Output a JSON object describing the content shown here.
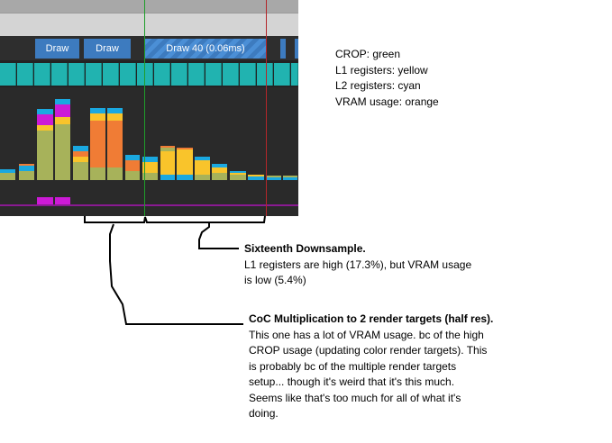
{
  "timeline": {
    "draws": [
      {
        "label": "Draw 40 (0.06ms)",
        "selected": true
      },
      {
        "label": "Draw",
        "selected": false
      },
      {
        "label": "Draw",
        "selected": false
      }
    ]
  },
  "legend": {
    "lines": [
      "CROP: green",
      "L1 registers: yellow",
      "L2 registers: cyan",
      "VRAM usage: orange"
    ]
  },
  "annotations": [
    {
      "title": "Sixteenth Downsample.",
      "lines": [
        "L1 registers are high (17.3%), but VRAM usage",
        "is low (5.4%)"
      ]
    },
    {
      "title": "CoC Multiplication to 2 render targets (half res).",
      "lines": [
        "This one has a lot of VRAM usage. bc of the high",
        "CROP usage (updating color render targets). This",
        "is probably bc of the multiple render targets",
        "setup... though it's weird that it's this much.",
        "Seems like that's too much for all of what it's",
        "doing."
      ]
    }
  ],
  "colors": {
    "crop": "#a7b25a",
    "l1": "#f9c42b",
    "l2": "#1aa8e0",
    "vram": "#f07c35",
    "magenta": "#cc1ad6",
    "draw": "#3d7bbf",
    "teal": "#21b3b0"
  }
}
